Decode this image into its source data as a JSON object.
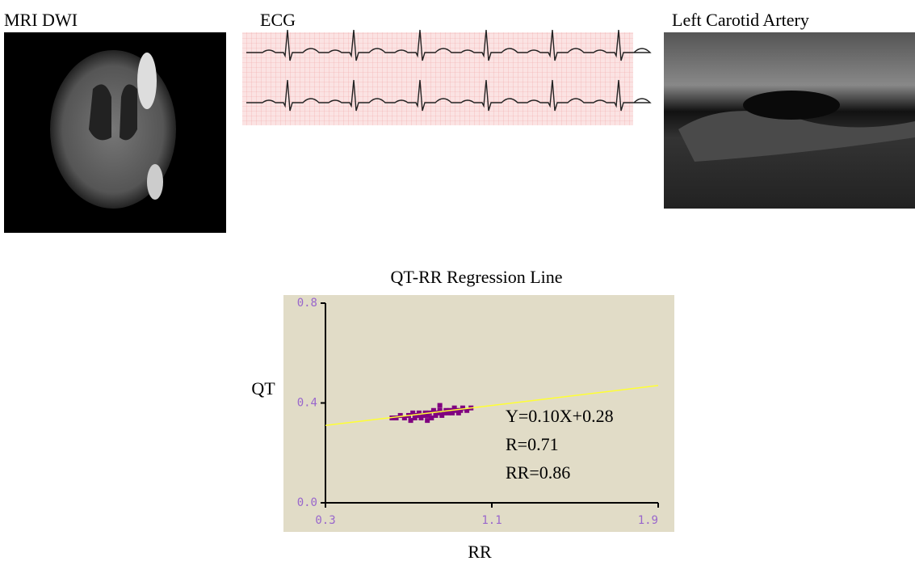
{
  "panels": [
    "MRI  DWI",
    "ECG",
    "Left Carotid  Artery"
  ],
  "chart_data": {
    "type": "scatter",
    "title": "QT-RR Regression Line",
    "x_label": "RR",
    "y_label": "QT",
    "xlim": [
      0.3,
      1.9
    ],
    "xticks": [
      0.3,
      1.1,
      1.9
    ],
    "ylim": [
      0,
      0.8
    ],
    "yticks": [
      {
        "value": 0,
        "label": "0.0"
      },
      0.4,
      0.8
    ],
    "background": "#e1dcc7",
    "x": [
      0.62,
      0.64,
      0.66,
      0.68,
      0.7,
      0.71,
      0.72,
      0.73,
      0.74,
      0.75,
      0.76,
      0.77,
      0.78,
      0.79,
      0.8,
      0.81,
      0.82,
      0.83,
      0.84,
      0.85,
      0.86,
      0.87,
      0.88,
      0.89,
      0.9,
      0.91,
      0.92,
      0.93,
      0.94,
      0.95,
      0.96,
      0.98,
      1.0,
      0.79,
      0.85
    ],
    "values": [
      0.34,
      0.34,
      0.35,
      0.34,
      0.35,
      0.33,
      0.36,
      0.34,
      0.35,
      0.36,
      0.34,
      0.35,
      0.36,
      0.35,
      0.36,
      0.34,
      0.37,
      0.35,
      0.36,
      0.37,
      0.35,
      0.36,
      0.37,
      0.36,
      0.37,
      0.36,
      0.38,
      0.37,
      0.36,
      0.37,
      0.38,
      0.37,
      0.38,
      0.33,
      0.39
    ],
    "color": "#800080",
    "fit": {
      "x": [
        0.3,
        1.9
      ],
      "values": [
        0.31,
        0.47
      ],
      "color": "#ffff33"
    },
    "annotations": [
      "Y=0.10X+0.28",
      "R=0.71",
      "RR=0.86"
    ]
  }
}
